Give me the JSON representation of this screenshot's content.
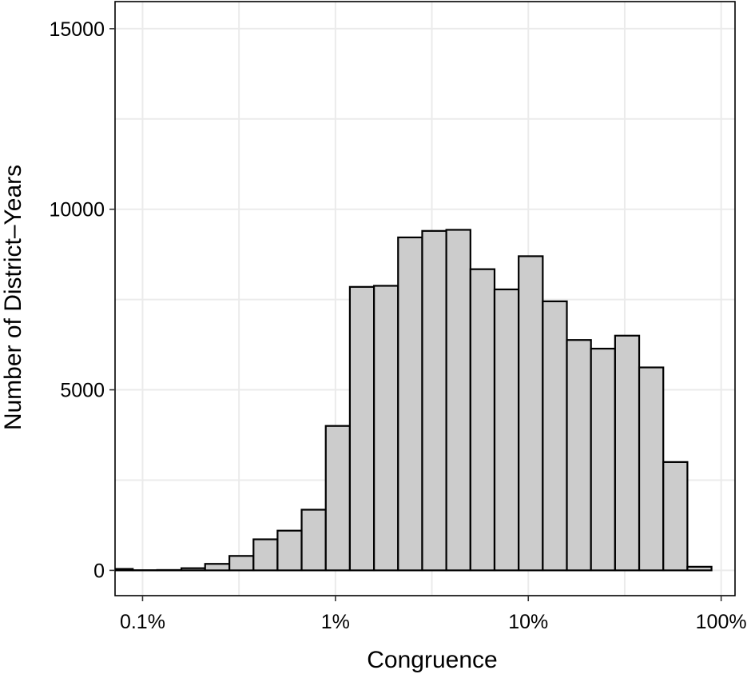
{
  "chart_data": {
    "type": "bar",
    "xlabel": "Congruence",
    "ylabel": "Number of District–Years",
    "x_scale": "log10",
    "xlim": [
      0.00072,
      1.18
    ],
    "ylim": [
      -700,
      15750
    ],
    "grid": true,
    "x_ticks": [
      {
        "value": 0.001,
        "label": "0.1%"
      },
      {
        "value": 0.01,
        "label": "1%"
      },
      {
        "value": 0.1,
        "label": "10%"
      },
      {
        "value": 1,
        "label": "100%"
      }
    ],
    "y_ticks": [
      {
        "value": 0,
        "label": "0"
      },
      {
        "value": 5000,
        "label": "5000"
      },
      {
        "value": 10000,
        "label": "10000"
      },
      {
        "value": 15000,
        "label": "15000"
      }
    ],
    "bins": [
      {
        "x0": 0.00067,
        "x1": 0.00089,
        "count": 40
      },
      {
        "x0": 0.00089,
        "x1": 0.00119,
        "count": 5
      },
      {
        "x0": 0.00119,
        "x1": 0.00159,
        "count": 10
      },
      {
        "x0": 0.00159,
        "x1": 0.00211,
        "count": 60
      },
      {
        "x0": 0.00211,
        "x1": 0.00282,
        "count": 180
      },
      {
        "x0": 0.00282,
        "x1": 0.00376,
        "count": 400
      },
      {
        "x0": 0.00376,
        "x1": 0.00501,
        "count": 860
      },
      {
        "x0": 0.00501,
        "x1": 0.00668,
        "count": 1100
      },
      {
        "x0": 0.00668,
        "x1": 0.00891,
        "count": 1680
      },
      {
        "x0": 0.00891,
        "x1": 0.01188,
        "count": 4000
      },
      {
        "x0": 0.01188,
        "x1": 0.01585,
        "count": 7850
      },
      {
        "x0": 0.01585,
        "x1": 0.02113,
        "count": 7880
      },
      {
        "x0": 0.02113,
        "x1": 0.02818,
        "count": 9220
      },
      {
        "x0": 0.02818,
        "x1": 0.03758,
        "count": 9400
      },
      {
        "x0": 0.03758,
        "x1": 0.05012,
        "count": 9430
      },
      {
        "x0": 0.05012,
        "x1": 0.06683,
        "count": 8340
      },
      {
        "x0": 0.06683,
        "x1": 0.08913,
        "count": 7780
      },
      {
        "x0": 0.08913,
        "x1": 0.11885,
        "count": 8700
      },
      {
        "x0": 0.11885,
        "x1": 0.15849,
        "count": 7450
      },
      {
        "x0": 0.15849,
        "x1": 0.21135,
        "count": 6380
      },
      {
        "x0": 0.21135,
        "x1": 0.28184,
        "count": 6140
      },
      {
        "x0": 0.28184,
        "x1": 0.37584,
        "count": 6500
      },
      {
        "x0": 0.37584,
        "x1": 0.50119,
        "count": 5620
      },
      {
        "x0": 0.50119,
        "x1": 0.66834,
        "count": 3000
      },
      {
        "x0": 0.66834,
        "x1": 0.89125,
        "count": 100
      }
    ]
  }
}
